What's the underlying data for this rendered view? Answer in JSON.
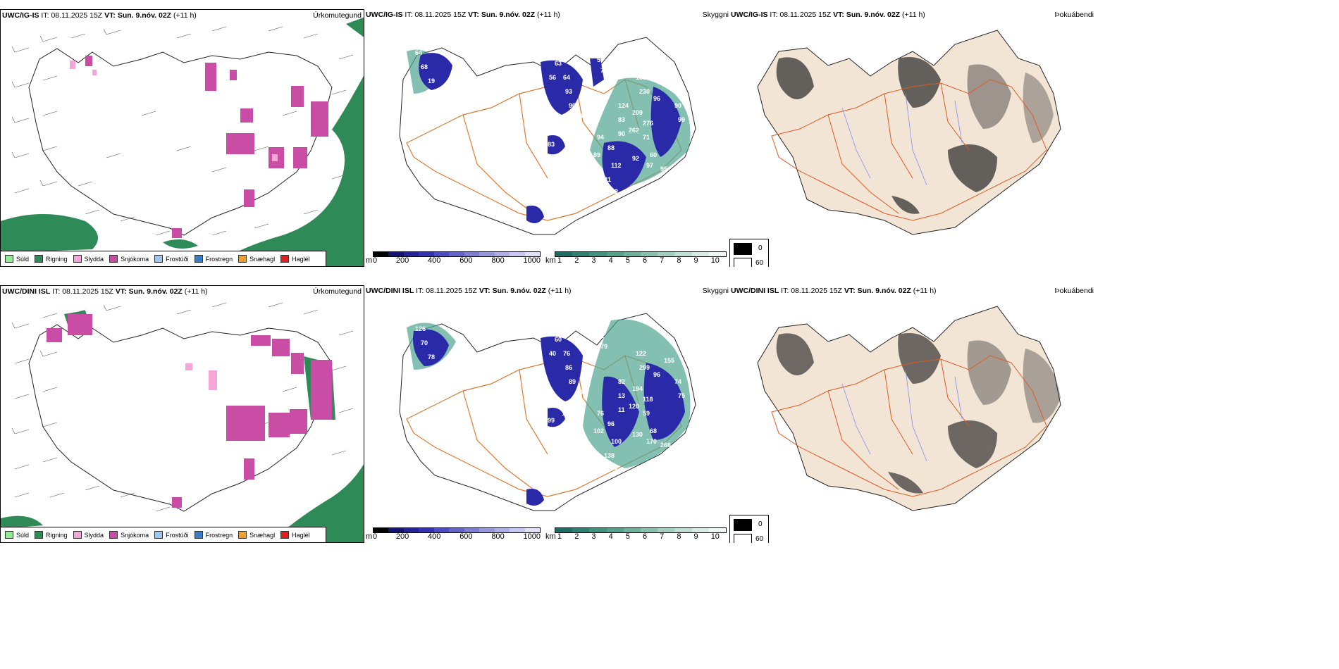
{
  "rows": [
    {
      "model": "UWC/IG-IS",
      "it_label": "IT:",
      "it_value": "08.11.2025 15Z",
      "vt_label": "VT:",
      "vt_value": "Sun. 9.nóv. 02Z",
      "lead": "(+11 h)",
      "precip_title": "Úrkomutegund",
      "cloud_title": "Skyggni",
      "fog_title": "Þokuábendi",
      "cloud_labels": [
        "64",
        "68",
        "19",
        "60",
        "63",
        "56",
        "64",
        "93",
        "90",
        "59",
        "75",
        "89",
        "83",
        "85",
        "94",
        "88",
        "89",
        "112",
        "81",
        "102",
        "131",
        "230",
        "96",
        "95",
        "90",
        "99",
        "209",
        "276",
        "262",
        "60",
        "92",
        "97",
        "95",
        "124",
        "83",
        "90",
        "71",
        "16",
        "11"
      ]
    },
    {
      "model": "UWC/DINI ISL",
      "it_label": "IT:",
      "it_value": "08.11.2025 15Z",
      "vt_label": "VT:",
      "vt_value": "Sun. 9.nóv. 02Z",
      "lead": "(+11 h)",
      "precip_title": "Úrkomutegund",
      "cloud_title": "Skyggni",
      "fog_title": "Þokuábendi",
      "cloud_labels": [
        "126",
        "70",
        "78",
        "82",
        "60",
        "40",
        "76",
        "86",
        "89",
        "91",
        "79",
        "105",
        "99",
        "111",
        "76",
        "96",
        "102",
        "100",
        "138",
        "131",
        "122",
        "299",
        "96",
        "155",
        "74",
        "75",
        "194",
        "118",
        "120",
        "68",
        "130",
        "170",
        "266",
        "82",
        "13",
        "11",
        "59"
      ]
    }
  ],
  "precip_legend": [
    {
      "label": "Súld",
      "color": "#90ee90"
    },
    {
      "label": "Rigning",
      "color": "#2e8b57"
    },
    {
      "label": "Slydda",
      "color": "#f4a6d7"
    },
    {
      "label": "Snjókoma",
      "color": "#c94ca5"
    },
    {
      "label": "Frostúði",
      "color": "#9ec6f0"
    },
    {
      "label": "Frostregn",
      "color": "#3a7cc7"
    },
    {
      "label": "Snæhagl",
      "color": "#f0a030"
    },
    {
      "label": "Haglél",
      "color": "#e02020"
    }
  ],
  "cloudbase_scale": {
    "unit": "m",
    "ticks": [
      "0",
      "200",
      "400",
      "600",
      "800",
      "1000"
    ],
    "colors": [
      "#000000",
      "#14146e",
      "#232397",
      "#3232b4",
      "#4b4bc3",
      "#6464c8",
      "#7d7dd2",
      "#9696dc",
      "#afafe6",
      "#c8c8f0",
      "#e1e1f8"
    ]
  },
  "visibility_scale": {
    "unit": "km",
    "ticks": [
      "1",
      "2",
      "3",
      "4",
      "5",
      "6",
      "7",
      "8",
      "9",
      "10"
    ],
    "colors": [
      "#1e6e64",
      "#2e8070",
      "#3f927e",
      "#55a08c",
      "#6eb09c",
      "#88c0ae",
      "#a2cfc0",
      "#bcded2",
      "#d6ece4",
      "#f0f8f5"
    ]
  },
  "fog_legend": {
    "high": "0",
    "low": "60"
  },
  "colors": {
    "rain": "#2e8b57",
    "snow": "#c94ca5",
    "sleet": "#f4a6d7",
    "land": "#f3e5d6",
    "roads": "#e06020",
    "rivers": "#7f8fe8"
  }
}
